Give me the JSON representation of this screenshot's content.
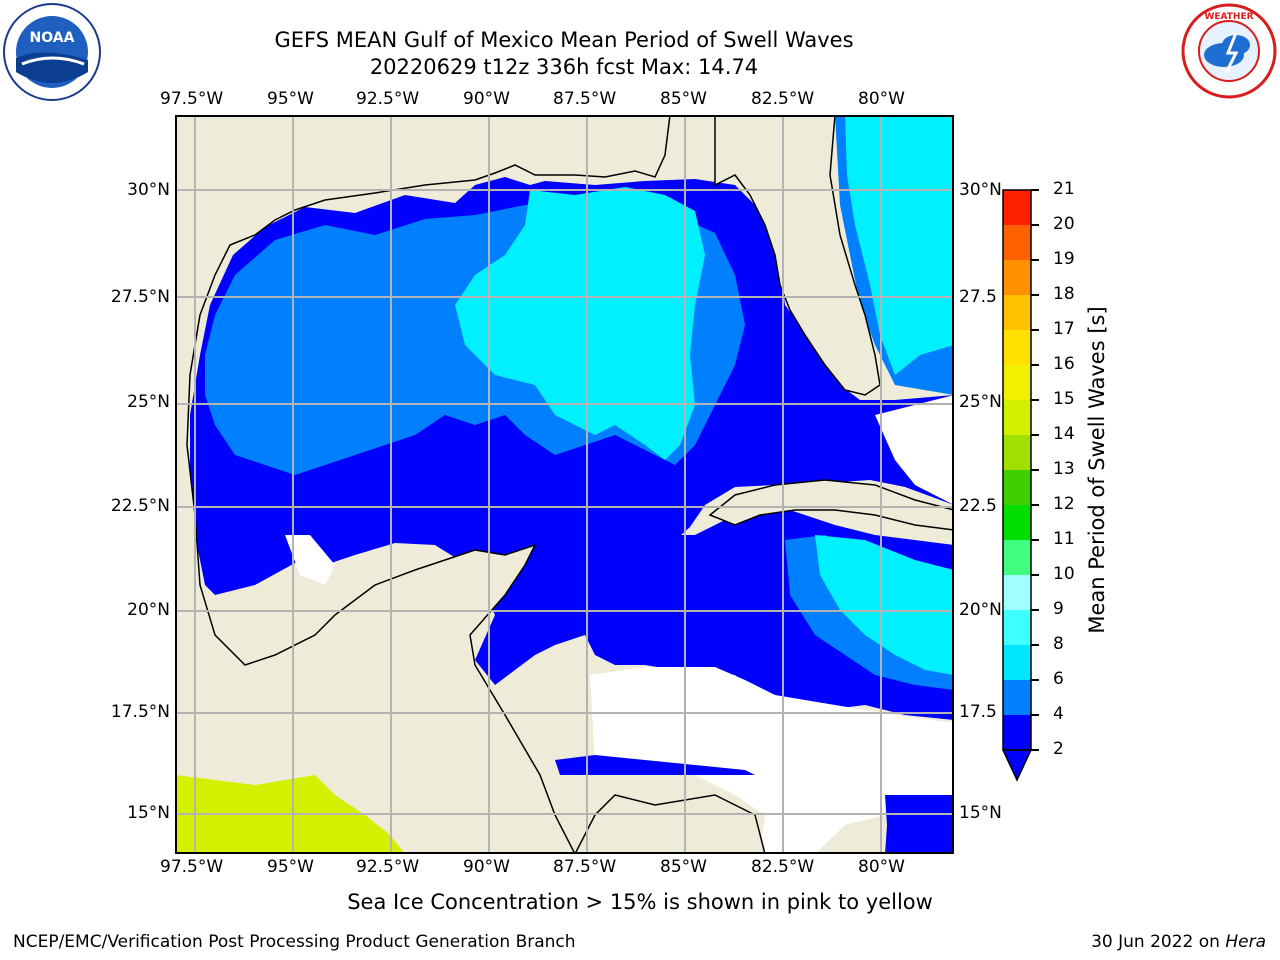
{
  "title_line1": "GEFS MEAN Gulf of Mexico Mean Period of Swell Waves",
  "title_line2": "20220629 t12z 336h fcst   Max: 14.74",
  "logos": {
    "left": "noaa-logo",
    "right": "national-weather-service-logo"
  },
  "map": {
    "lon_labels": [
      "97.5°W",
      "95°W",
      "92.5°W",
      "90°W",
      "87.5°W",
      "85°W",
      "82.5°W",
      "80°W"
    ],
    "lat_labels_left": [
      "30°N",
      "27.5°N",
      "25°N",
      "22.5°N",
      "20°N",
      "17.5°N",
      "15°N"
    ],
    "lat_labels_right": [
      "30°N",
      "27.5",
      "25°N",
      "22.5",
      "20°N",
      "17.5",
      "15°N"
    ],
    "land_color": "#eeecd9",
    "grid_color": "#b3b3b3"
  },
  "colorbar": {
    "label": "Mean Period of Swell Waves [s]",
    "ticks": [
      "2",
      "4",
      "6",
      "8",
      "9",
      "10",
      "11",
      "12",
      "13",
      "14",
      "15",
      "16",
      "17",
      "18",
      "19",
      "20",
      "21"
    ],
    "colors": [
      "#0000ff",
      "#0080ff",
      "#00e6ff",
      "#40ffff",
      "#a0ffff",
      "#40ff80",
      "#00e000",
      "#40d000",
      "#a0e000",
      "#d0f000",
      "#f0f000",
      "#ffe000",
      "#ffc000",
      "#ff9000",
      "#ff6000",
      "#ff2000"
    ]
  },
  "note": "Sea Ice Concentration > 15% is shown in pink to yellow",
  "footer_left": "NCEP/EMC/Verification Post Processing Product Generation Branch",
  "footer_date": "30 Jun 2022 on",
  "footer_host": "Hera"
}
